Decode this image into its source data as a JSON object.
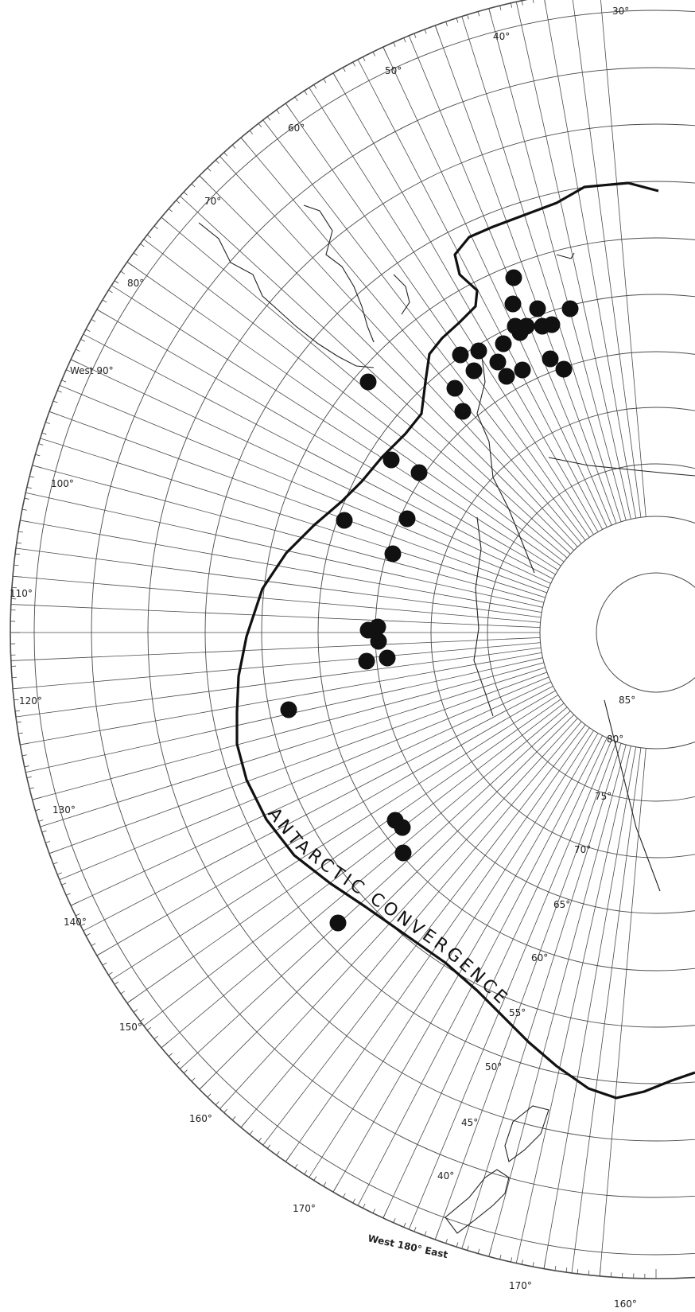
{
  "map": {
    "colors": {
      "ink": "#111111",
      "grid": "#4a4a4a",
      "paper": "#ffffff"
    },
    "meridian_labels": [
      "30°",
      "40°",
      "50°",
      "60°",
      "70°",
      "80°",
      "West 90°",
      "100°",
      "110°",
      "120°",
      "130°",
      "140°",
      "150°",
      "160°",
      "170°"
    ],
    "bottom_labels": {
      "dateline": "West 180° East",
      "east_170": "170°",
      "east_160": "160°"
    },
    "latitude_labels": [
      "85°",
      "80°",
      "75°",
      "70°",
      "65°",
      "60°",
      "55°",
      "50°",
      "45°",
      "40°"
    ],
    "convergence_label": "ANTARCTIC CONVERGENCE",
    "station_count": 40
  }
}
